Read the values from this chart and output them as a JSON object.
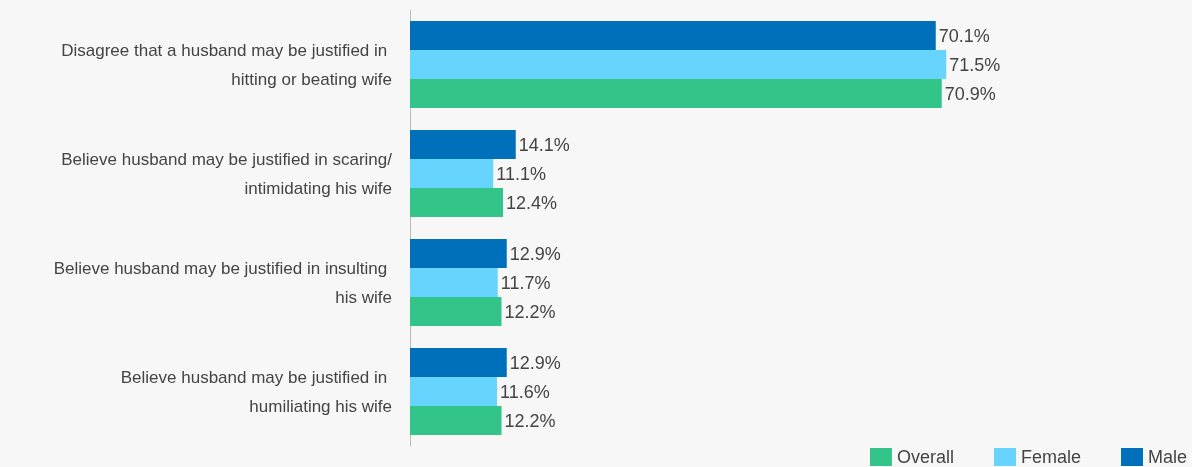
{
  "chart_data": {
    "type": "bar",
    "orientation": "horizontal",
    "categories": [
      "Disagree that a husband may be justified in hitting or beating wife",
      "Believe husband may be justified in scaring/intimidating his wife",
      "Believe husband may be justified in insulting his wife",
      "Believe husband may be justified in humiliating his wife"
    ],
    "series": [
      {
        "name": "Male",
        "color": "#0070ba",
        "values": [
          70.1,
          14.1,
          12.9,
          12.9
        ],
        "value_labels": [
          "70.1%",
          "14.1%",
          "12.9%",
          "12.9%"
        ]
      },
      {
        "name": "Female",
        "color": "#66d4fc",
        "values": [
          71.5,
          11.1,
          11.7,
          11.6
        ],
        "value_labels": [
          "71.5%",
          "11.1%",
          "11.7%",
          "11.6%"
        ]
      },
      {
        "name": "Overall",
        "color": "#33c489",
        "values": [
          70.9,
          12.4,
          12.2,
          12.2
        ],
        "value_labels": [
          "70.9%",
          "12.4%",
          "12.2%",
          "12.2%"
        ]
      }
    ],
    "tick_labels": "y",
    "legend": "bottom right"
  }
}
